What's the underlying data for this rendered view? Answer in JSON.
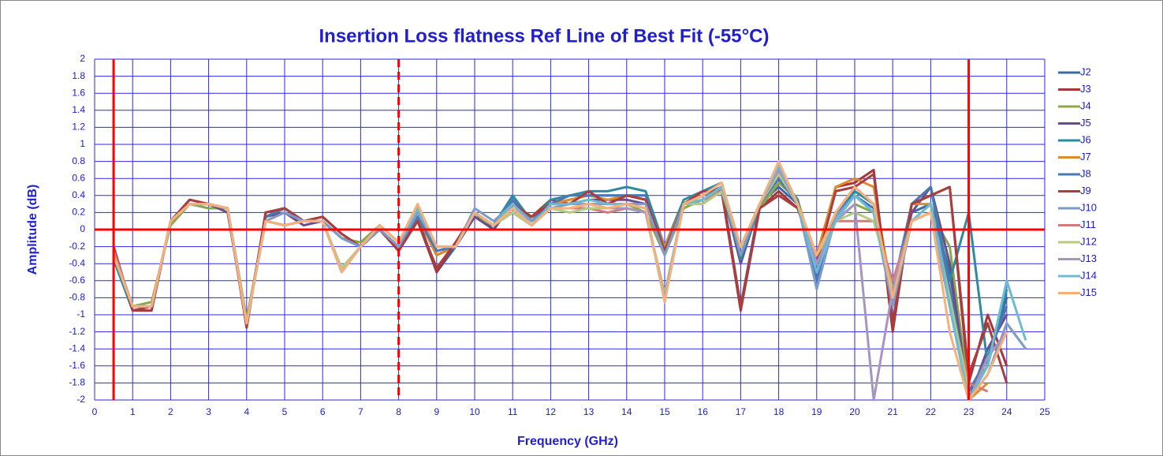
{
  "chart_data": {
    "type": "line",
    "title": "Insertion Loss flatness Ref Line of Best Fit (-55°C)",
    "x_label": "Frequency (GHz)",
    "y_label": "Amplitude (dB)",
    "xlim": [
      0,
      25
    ],
    "xticks": [
      0,
      1,
      2,
      3,
      4,
      5,
      6,
      7,
      8,
      9,
      10,
      11,
      12,
      13,
      14,
      15,
      16,
      17,
      18,
      19,
      20,
      21,
      22,
      23,
      24,
      25
    ],
    "ylim": [
      -2,
      2
    ],
    "yticks": [
      -2,
      -1.8,
      -1.6,
      -1.4,
      -1.2,
      -1,
      -0.8,
      -0.6,
      -0.4,
      -0.2,
      0,
      0.2,
      0.4,
      0.6,
      0.8,
      1,
      1.2,
      1.4,
      1.6,
      1.8,
      2
    ],
    "grid": true,
    "legend": "right",
    "reference_lines": [
      {
        "x": 0.5,
        "color": "#ff0000"
      },
      {
        "x": 8,
        "color": "#ff0000",
        "dashed": true
      },
      {
        "x": 23,
        "color": "#ff0000"
      },
      {
        "y": 0,
        "color": "#ff0000"
      }
    ],
    "x": [
      0.5,
      1,
      1.5,
      2,
      2.5,
      3,
      3.5,
      4,
      4.5,
      5,
      5.5,
      6,
      6.5,
      7,
      7.5,
      8,
      8.5,
      9,
      9.5,
      10,
      10.5,
      11,
      11.5,
      12,
      12.5,
      13,
      13.5,
      14,
      14.5,
      15,
      15.5,
      16,
      16.5,
      17,
      17.5,
      18,
      18.5,
      19,
      19.5,
      20,
      20.5,
      21,
      21.5,
      22,
      22.5,
      23,
      23.5,
      24,
      24.5
    ],
    "series": [
      {
        "name": "J2",
        "color": "#3c6aa3",
        "values": [
          -0.3,
          -0.9,
          -0.9,
          0.1,
          0.3,
          0.3,
          0.25,
          -1.1,
          0.15,
          0.25,
          0.1,
          0.1,
          -0.1,
          -0.2,
          0,
          -0.2,
          0.15,
          -0.5,
          -0.2,
          0.2,
          0,
          0.35,
          0.1,
          0.3,
          0.35,
          0.4,
          0.4,
          0.4,
          0.4,
          -0.2,
          0.3,
          0.4,
          0.5,
          -0.9,
          0.3,
          0.5,
          0.3,
          -0.5,
          0.2,
          0.5,
          0.3,
          -0.8,
          0.2,
          0.3,
          -0.5,
          -2,
          -1.5,
          -0.8,
          null
        ]
      },
      {
        "name": "J3",
        "color": "#a5373a",
        "values": [
          -0.2,
          -0.95,
          -0.95,
          0.1,
          0.35,
          0.3,
          0.25,
          -1.15,
          0.2,
          0.25,
          0.1,
          0.15,
          -0.05,
          -0.2,
          0,
          -0.25,
          0.1,
          -0.5,
          -0.15,
          0.2,
          0.05,
          0.3,
          0.15,
          0.35,
          0.3,
          0.45,
          0.3,
          0.4,
          0.35,
          -0.25,
          0.3,
          0.45,
          0.45,
          -0.95,
          0.25,
          0.45,
          0.25,
          -0.4,
          0.5,
          0.55,
          0.7,
          -1.2,
          0.3,
          0.4,
          0.5,
          -1.8,
          -1,
          -1.6,
          null
        ]
      },
      {
        "name": "J4",
        "color": "#8aa84a",
        "values": [
          -0.3,
          -0.9,
          -0.85,
          0.05,
          0.3,
          0.25,
          0.25,
          -1.05,
          0.1,
          0.2,
          0.1,
          0.1,
          -0.1,
          -0.15,
          0.05,
          -0.15,
          0.15,
          -0.2,
          -0.2,
          0.15,
          0.05,
          0.2,
          0.05,
          0.25,
          0.25,
          0.3,
          0.25,
          0.3,
          0.2,
          -0.3,
          0.25,
          0.35,
          0.45,
          -0.3,
          0.25,
          0.55,
          0.35,
          -0.4,
          0.1,
          0.3,
          0.2,
          -0.9,
          0.1,
          0.2,
          -0.2,
          -1.9,
          -1.6,
          null,
          null
        ]
      },
      {
        "name": "J5",
        "color": "#6a4d8c",
        "values": [
          -0.25,
          -0.9,
          -0.9,
          0.1,
          0.3,
          0.3,
          0.2,
          -1.1,
          0.15,
          0.2,
          0.05,
          0.1,
          -0.1,
          -0.2,
          0,
          -0.2,
          0.15,
          -0.3,
          -0.2,
          0.15,
          0,
          0.3,
          0.1,
          0.3,
          0.3,
          0.35,
          0.35,
          0.35,
          0.3,
          -0.25,
          0.3,
          0.4,
          0.5,
          -0.4,
          0.3,
          0.6,
          0.3,
          -0.6,
          0.2,
          0.4,
          0.2,
          -0.8,
          0.2,
          0.5,
          -0.4,
          -2,
          -1.4,
          -1,
          null
        ]
      },
      {
        "name": "J6",
        "color": "#2e8a9e",
        "values": [
          -0.35,
          -0.95,
          -0.9,
          0.1,
          0.3,
          0.3,
          0.25,
          -1.1,
          0.15,
          0.25,
          0.1,
          0.1,
          -0.1,
          -0.2,
          0,
          -0.2,
          0.15,
          -0.3,
          -0.2,
          0.2,
          0.05,
          0.4,
          0.1,
          0.35,
          0.4,
          0.45,
          0.45,
          0.5,
          0.45,
          -0.2,
          0.35,
          0.45,
          0.55,
          -0.35,
          0.3,
          0.65,
          0.35,
          -0.6,
          0.2,
          0.45,
          0.3,
          -0.7,
          0.3,
          0.5,
          -0.6,
          0.2,
          -1.6,
          -0.7,
          null
        ]
      },
      {
        "name": "J7",
        "color": "#e08a2e",
        "values": [
          -0.3,
          -0.9,
          -0.9,
          0.1,
          0.3,
          0.3,
          0.25,
          -1.1,
          0.15,
          0.25,
          0.1,
          0.1,
          -0.1,
          -0.2,
          0,
          -0.2,
          0.15,
          -0.3,
          -0.2,
          0.2,
          0.05,
          0.3,
          0.1,
          0.3,
          0.35,
          0.4,
          0.35,
          0.4,
          0.35,
          -0.2,
          0.3,
          0.4,
          0.5,
          -0.3,
          0.3,
          0.7,
          0.3,
          -0.3,
          0.5,
          0.6,
          0.5,
          -0.8,
          0.3,
          0.3,
          -0.9,
          -2,
          -1.8,
          null,
          null
        ]
      },
      {
        "name": "J8",
        "color": "#4a78b5",
        "values": [
          -0.3,
          -0.9,
          -0.9,
          0.1,
          0.3,
          0.3,
          0.25,
          -1.1,
          0.15,
          0.25,
          0.1,
          0.1,
          -0.1,
          -0.2,
          0,
          -0.2,
          0.15,
          -0.25,
          -0.2,
          0.2,
          0.05,
          0.35,
          0.1,
          0.3,
          0.4,
          0.4,
          0.4,
          0.4,
          0.4,
          -0.25,
          0.3,
          0.4,
          0.5,
          -0.3,
          0.3,
          0.6,
          0.3,
          -0.6,
          0.2,
          0.4,
          0.25,
          -0.8,
          0.3,
          0.5,
          -0.7,
          -1.9,
          -1.5,
          -0.9,
          null
        ]
      },
      {
        "name": "J9",
        "color": "#a83e3e",
        "values": [
          -0.2,
          -0.95,
          -0.9,
          0.1,
          0.35,
          0.3,
          0.25,
          -1.15,
          0.2,
          0.25,
          0.1,
          0.15,
          -0.05,
          -0.2,
          0,
          -0.25,
          0.1,
          -0.45,
          -0.15,
          0.2,
          0.05,
          0.3,
          0.15,
          0.3,
          0.3,
          0.45,
          0.3,
          0.4,
          0.35,
          -0.25,
          0.3,
          0.45,
          0.45,
          -0.9,
          0.25,
          0.4,
          0.25,
          -0.4,
          0.45,
          0.5,
          0.65,
          -1.1,
          0.3,
          0.4,
          0.5,
          -1.7,
          -1.1,
          -1.8,
          null
        ]
      },
      {
        "name": "J10",
        "color": "#7f9cc9",
        "values": [
          -0.3,
          -0.9,
          -0.9,
          0.1,
          0.3,
          0.3,
          0.25,
          -1.1,
          0.1,
          0.2,
          0.1,
          0.1,
          -0.1,
          -0.2,
          0,
          -0.2,
          0.2,
          -0.2,
          -0.2,
          0.25,
          0.1,
          0.3,
          0.1,
          0.25,
          0.3,
          0.3,
          0.3,
          0.3,
          0.3,
          -0.3,
          0.3,
          0.35,
          0.5,
          -0.3,
          0.3,
          0.65,
          0.3,
          -0.7,
          0.15,
          0.4,
          0.2,
          -0.9,
          0.1,
          0.3,
          -0.8,
          -2,
          -1.7,
          -1.1,
          -1.4
        ]
      },
      {
        "name": "J11",
        "color": "#d47c7c",
        "values": [
          -0.25,
          -0.9,
          -0.9,
          0.1,
          0.3,
          0.3,
          0.25,
          -1.1,
          0.1,
          0.05,
          0.1,
          0.1,
          -0.5,
          -0.2,
          0.05,
          -0.15,
          0.25,
          -0.2,
          -0.2,
          0.2,
          0.05,
          0.2,
          0.05,
          0.25,
          0.25,
          0.25,
          0.2,
          0.25,
          0.2,
          -0.8,
          0.3,
          0.3,
          0.5,
          -0.2,
          0.3,
          0.7,
          0.3,
          -0.3,
          0.1,
          0.1,
          0.1,
          -0.6,
          0.1,
          0.2,
          -0.9,
          -1.8,
          -1.9,
          null,
          null
        ]
      },
      {
        "name": "J12",
        "color": "#b3cc80",
        "values": [
          -0.3,
          -0.9,
          -0.9,
          0.1,
          0.3,
          0.3,
          0.25,
          -1.1,
          0.1,
          0.05,
          0.1,
          0.1,
          -0.45,
          -0.2,
          0.05,
          -0.15,
          0.25,
          -0.2,
          -0.2,
          0.2,
          0.05,
          0.2,
          0.05,
          0.25,
          0.2,
          0.25,
          0.25,
          0.25,
          0.2,
          -0.75,
          0.3,
          0.3,
          0.45,
          -0.2,
          0.3,
          0.65,
          0.3,
          -0.3,
          0.1,
          0.2,
          0.1,
          -0.7,
          0.1,
          0.2,
          -0.8,
          -1.9,
          null,
          null,
          null
        ]
      },
      {
        "name": "J13",
        "color": "#a894c2",
        "values": [
          -0.3,
          -0.9,
          -0.9,
          0.1,
          0.3,
          0.3,
          0.25,
          -1.1,
          0.1,
          0.05,
          0.1,
          0.1,
          -0.5,
          -0.2,
          0.05,
          -0.15,
          0.25,
          -0.2,
          -0.2,
          0.2,
          0.05,
          0.25,
          0.05,
          0.25,
          0.25,
          0.3,
          0.25,
          0.25,
          0.2,
          -0.8,
          0.3,
          0.35,
          0.5,
          -0.2,
          0.3,
          0.7,
          0.3,
          -0.4,
          0.1,
          0.3,
          -2,
          -0.7,
          0.1,
          0.3,
          -0.9,
          -2,
          -1.5,
          -1.2,
          null
        ]
      },
      {
        "name": "J14",
        "color": "#6bbcd2",
        "values": [
          -0.3,
          -0.9,
          -0.9,
          0.1,
          0.3,
          0.3,
          0.25,
          -1.1,
          0.1,
          0.05,
          0.1,
          0.1,
          -0.5,
          -0.2,
          0.05,
          -0.15,
          0.25,
          -0.2,
          -0.2,
          0.2,
          0.05,
          0.3,
          0.05,
          0.3,
          0.3,
          0.35,
          0.3,
          0.3,
          0.25,
          -0.85,
          0.3,
          0.35,
          0.5,
          -0.2,
          0.3,
          0.75,
          0.3,
          -0.5,
          0.1,
          0.4,
          0.2,
          -0.8,
          0.1,
          0.3,
          -0.9,
          -2,
          -1.6,
          -0.6,
          -1.3
        ]
      },
      {
        "name": "J15",
        "color": "#f6b07a",
        "values": [
          -0.3,
          -0.9,
          -0.9,
          0.1,
          0.3,
          0.3,
          0.25,
          -1.1,
          0.1,
          0.05,
          0.1,
          0.1,
          -0.5,
          -0.2,
          0.05,
          -0.15,
          0.3,
          -0.2,
          -0.2,
          0.2,
          0.05,
          0.25,
          0.05,
          0.25,
          0.25,
          0.3,
          0.25,
          0.3,
          0.25,
          -0.85,
          0.3,
          0.4,
          0.55,
          -0.2,
          0.3,
          0.8,
          0.3,
          -0.3,
          0.2,
          0.5,
          0.3,
          -0.8,
          0.1,
          0.2,
          -1.2,
          -2,
          -1.7,
          -1.2,
          null
        ]
      }
    ]
  }
}
